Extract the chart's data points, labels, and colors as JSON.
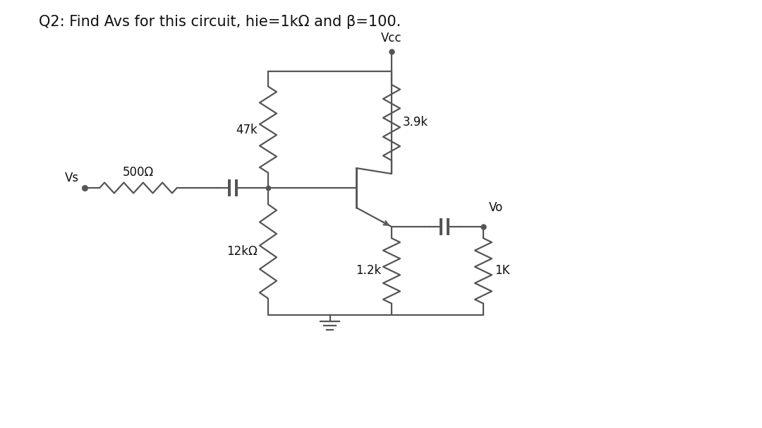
{
  "title": "Q2: Find Avs for this circuit, hie=1kΩ and β=100.",
  "bg_color": "#ffffff",
  "line_color": "#555555",
  "text_color": "#111111",
  "label_47k": "47k",
  "label_3_9k": "3.9k",
  "label_500": "500Ω",
  "label_12k": "12kΩ",
  "label_1_2k": "1.2k",
  "label_1K": "1K",
  "label_Vcc": "Vcc",
  "label_Vs": "Vs",
  "label_Vo": "Vo",
  "title_fontsize": 15,
  "label_fontsize": 12
}
